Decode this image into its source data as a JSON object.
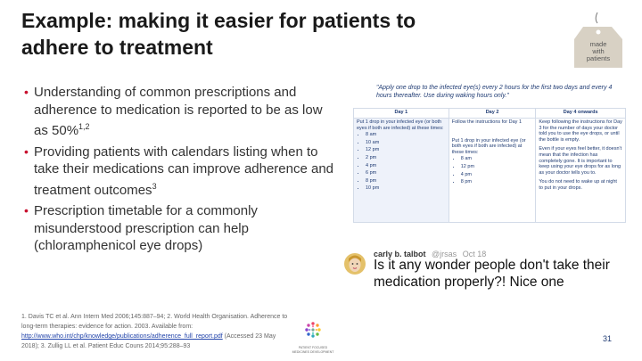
{
  "slide": {
    "title": "Example: making it easier for patients to adhere to treatment",
    "page_number": "31"
  },
  "tag": {
    "lines": [
      "made",
      "with",
      "patients"
    ]
  },
  "bullets": [
    {
      "text": "Understanding of common prescriptions and adherence to medication is reported to be as low as 50%",
      "sup": "1,2"
    },
    {
      "text": "Providing patients with calendars listing when to take their medications can improve adherence and treatment outcomes",
      "sup": "3"
    },
    {
      "text": "Prescription timetable for a commonly misunderstood prescription can help (chloramphenicol eye drops)",
      "sup": ""
    }
  ],
  "prescription": {
    "quote": "\"Apply one drop to the infected eye(s) every 2 hours for the first two days and every 4 hours thereafter. Use during waking hours only.\"",
    "headers": [
      "Day 1",
      "Day 2",
      "Day 4 onwards"
    ],
    "day1": {
      "intro": "Put 1 drop in your infected eye (or both eyes if both are infected) at these times:",
      "times": [
        "8 am",
        "10 am",
        "12 pm",
        "2 pm",
        "4 pm",
        "6 pm",
        "8 pm",
        "10 pm"
      ]
    },
    "day2": {
      "intro1": "Follow the instructions for Day 1",
      "intro2": "Put 1 drop in your infected eye (or both eyes if both are infected) at these times:",
      "times": [
        "8 am",
        "12 pm",
        "4 pm",
        "8 pm"
      ]
    },
    "day4": {
      "p1": "Keep following the instructions for Day 3 for the number of days your doctor told you to use the eye drops, or until the bottle is empty.",
      "p2": "Even if your eyes feel better, it doesn't mean that the infection has completely gone. It is important to keep using your eye drops for as long as your doctor tells you to.",
      "p3": "You do not need to wake up at night to put in your drops."
    }
  },
  "tweet": {
    "name": "carly b. talbot",
    "handle": "@jrsas",
    "date": "Oct 18",
    "text": "Is it any wonder people don't take their medication properly?! Nice one"
  },
  "references": {
    "part1": "1. Davis TC et al. Ann Intern Med 2006;145:887–94; 2. World Health Organisation. Adherence to long-term therapies: evidence for action. 2003. Available from: ",
    "link": "http://www.who.int/chp/knowledge/publications/adherence_full_report.pdf",
    "part2": " (Accessed 23 May 2018); 3. Zullig LL et al. Patient Educ Couns 2014;95:288–93"
  },
  "logo": {
    "line1": "PATIENT FOCUSED",
    "line2": "MEDICINES DEVELOPMENT"
  },
  "colors": {
    "bullet": "#c8102e",
    "table_text": "#1f3b73",
    "link": "#2244aa"
  }
}
